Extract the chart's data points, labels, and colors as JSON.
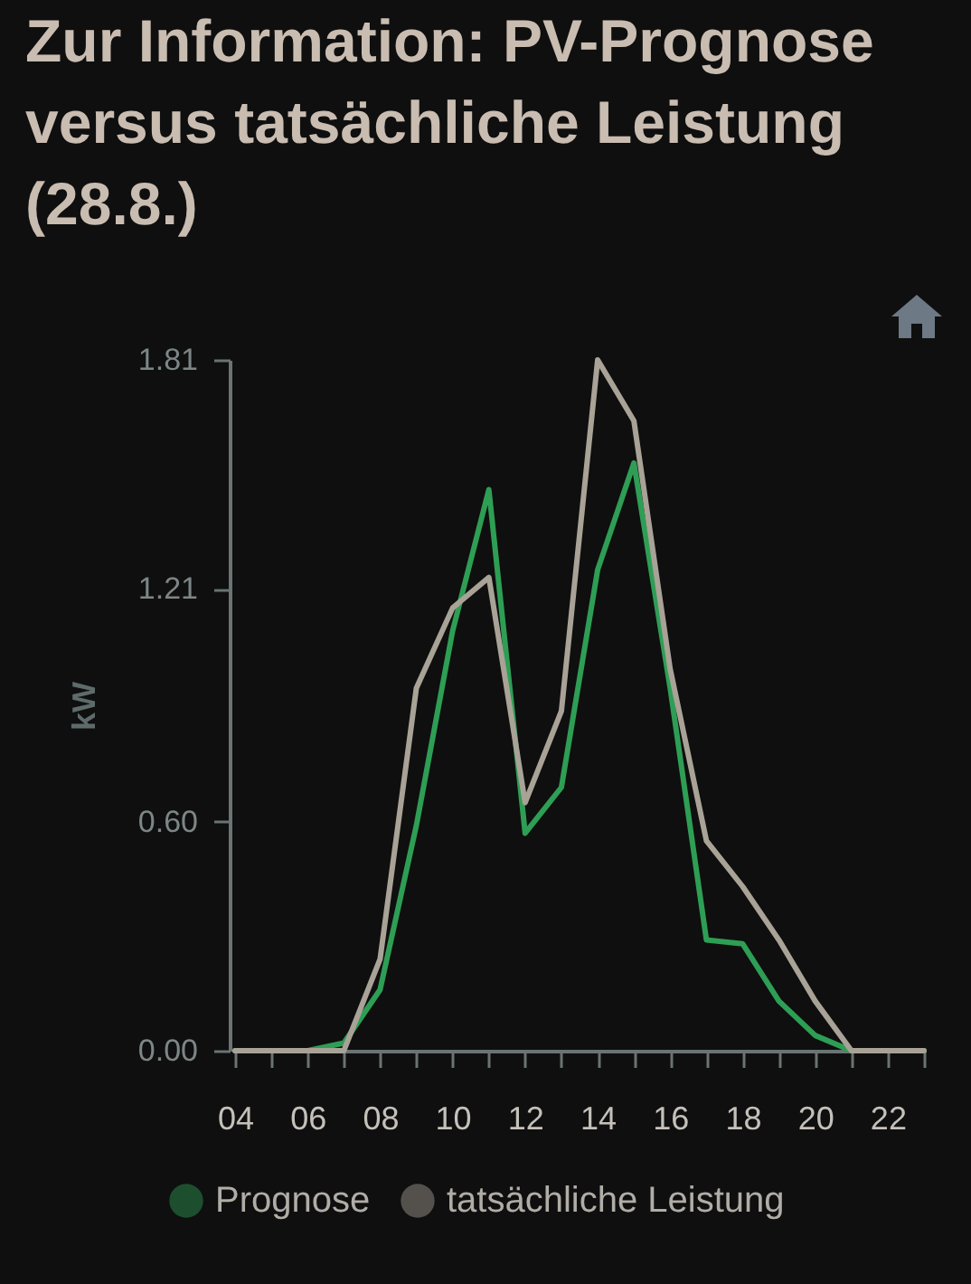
{
  "chart_data": {
    "type": "line",
    "title": "Zur Information: PV-Prognose versus tatsächliche Leistung (28.8.)",
    "ylabel": "kW",
    "x": [
      4,
      5,
      6,
      7,
      8,
      9,
      10,
      11,
      12,
      13,
      14,
      15,
      16,
      17,
      18,
      19,
      20,
      21,
      22,
      23
    ],
    "series": [
      {
        "name": "Prognose",
        "color": "#2e9e55",
        "values": [
          0,
          0,
          0,
          0.02,
          0.16,
          0.59,
          1.1,
          1.47,
          0.57,
          0.69,
          1.26,
          1.54,
          0.95,
          0.29,
          0.28,
          0.13,
          0.04,
          0,
          0,
          0
        ]
      },
      {
        "name": "tatsächliche Leistung",
        "color": "#a9a297",
        "values": [
          0,
          0,
          0,
          0,
          0.24,
          0.95,
          1.16,
          1.24,
          0.65,
          0.89,
          1.81,
          1.65,
          1.0,
          0.55,
          0.43,
          0.29,
          0.13,
          0,
          0,
          0
        ]
      }
    ],
    "xlim": [
      4,
      23
    ],
    "xticks": [
      {
        "value": 4,
        "label": "04"
      },
      {
        "value": 5,
        "label": null
      },
      {
        "value": 6,
        "label": "06"
      },
      {
        "value": 7,
        "label": null
      },
      {
        "value": 8,
        "label": "08"
      },
      {
        "value": 9,
        "label": null
      },
      {
        "value": 10,
        "label": "10"
      },
      {
        "value": 11,
        "label": null
      },
      {
        "value": 12,
        "label": "12"
      },
      {
        "value": 13,
        "label": null
      },
      {
        "value": 14,
        "label": "14"
      },
      {
        "value": 15,
        "label": null
      },
      {
        "value": 16,
        "label": "16"
      },
      {
        "value": 17,
        "label": null
      },
      {
        "value": 18,
        "label": "18"
      },
      {
        "value": 19,
        "label": null
      },
      {
        "value": 20,
        "label": "20"
      },
      {
        "value": 21,
        "label": null
      },
      {
        "value": 22,
        "label": "22"
      },
      {
        "value": 23,
        "label": null
      }
    ],
    "ylim": [
      0,
      1.81
    ],
    "yticks": [
      {
        "value": 0,
        "label": "0.00"
      },
      {
        "value": 0.6,
        "label": "0.60"
      },
      1.21,
      1.81
    ],
    "legend": "bottom"
  }
}
